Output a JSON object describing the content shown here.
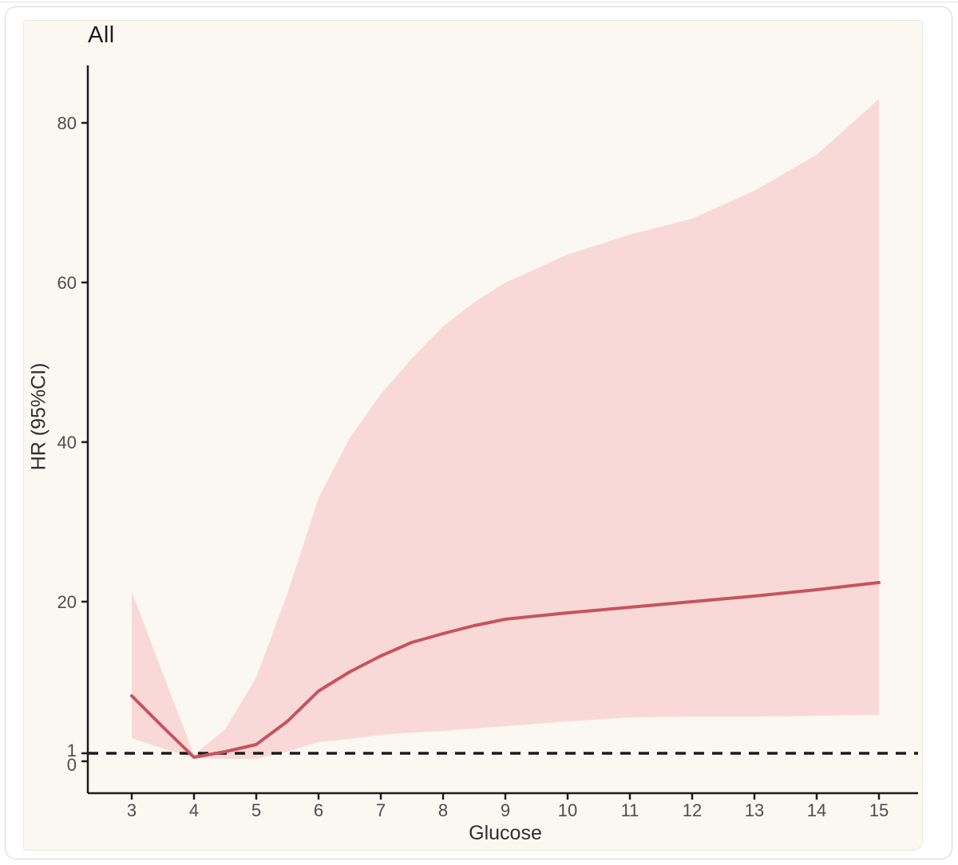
{
  "figure": {
    "title": "All",
    "x_axis_label": "Glucose",
    "y_axis_label": "HR (95%CI)"
  },
  "chart_data": {
    "type": "line",
    "title": "All",
    "xlabel": "Glucose",
    "ylabel": "HR (95%CI)",
    "x_ticks": [
      3,
      4,
      5,
      6,
      7,
      8,
      9,
      10,
      11,
      12,
      13,
      14,
      15
    ],
    "y_ticks": [
      0,
      1,
      20,
      40,
      60,
      80
    ],
    "xlim": [
      2.3,
      15.6
    ],
    "ylim": [
      0,
      87
    ],
    "grid": false,
    "legend": "none",
    "reference_line_y": 1,
    "reference_line_style": "dashed",
    "series": [
      {
        "name": "HR",
        "x": [
          3,
          3.5,
          4,
          4.5,
          5,
          5.5,
          6,
          6.5,
          7,
          7.5,
          8,
          8.5,
          9,
          10,
          11,
          12,
          13,
          14,
          15
        ],
        "y": [
          8.2,
          4.3,
          0.5,
          1.2,
          2.1,
          5.0,
          8.8,
          11.2,
          13.2,
          14.9,
          16.0,
          17.0,
          17.8,
          18.6,
          19.3,
          20.0,
          20.7,
          21.5,
          22.4
        ]
      }
    ],
    "ci_band": {
      "name": "95% CI",
      "x": [
        3,
        3.5,
        4,
        4.5,
        5,
        5.5,
        6,
        6.5,
        7,
        7.5,
        8,
        8.5,
        9,
        10,
        11,
        12,
        13,
        14,
        15
      ],
      "lower": [
        2.9,
        1.6,
        0.4,
        0.3,
        0.3,
        1.2,
        2.4,
        2.8,
        3.3,
        3.6,
        3.8,
        4.1,
        4.4,
        5.0,
        5.5,
        5.6,
        5.6,
        5.7,
        5.8
      ],
      "upper": [
        21.3,
        11.0,
        0.8,
        4.0,
        10.5,
        21.0,
        33.0,
        40.5,
        46.0,
        50.5,
        54.5,
        57.5,
        60.0,
        63.5,
        66.0,
        68.0,
        71.5,
        76.0,
        83.0
      ]
    },
    "colors": {
      "line": "#c6545e",
      "band": "#f9d9d8",
      "reference": "#1a1a1a",
      "axis": "#1c1c1c",
      "tick_label": "#4d4d4d",
      "background": "#faf8f1"
    }
  }
}
